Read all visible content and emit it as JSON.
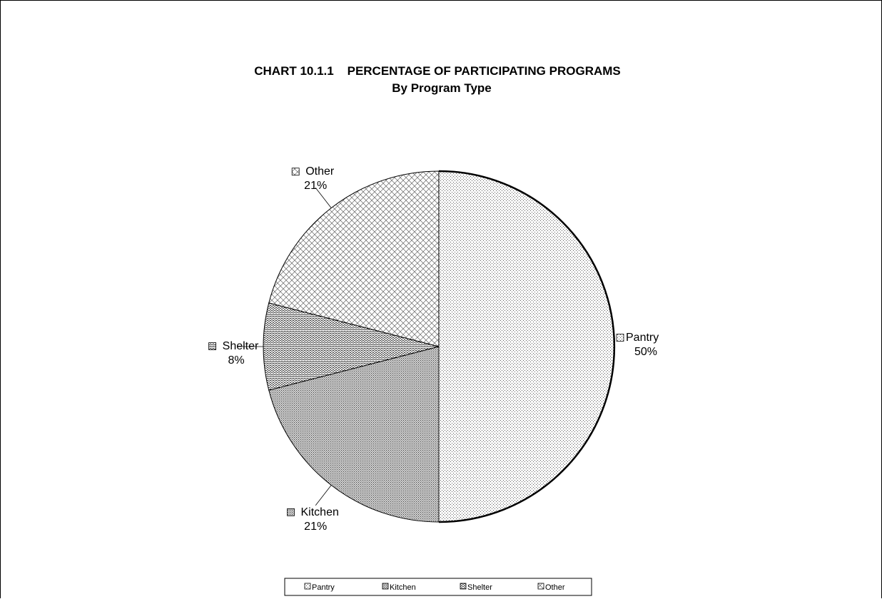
{
  "chart_data": {
    "type": "pie",
    "title": "CHART 10.1.1    PERCENTAGE OF PARTICIPATING PROGRAMS",
    "subtitle": "By Program Type",
    "categories": [
      "Pantry",
      "Kitchen",
      "Shelter",
      "Other"
    ],
    "values": [
      50,
      21,
      8,
      21
    ],
    "value_labels": [
      "50%",
      "21%",
      "8%",
      "21%"
    ],
    "legend": {
      "entries": [
        "Pantry",
        "Kitchen",
        "Shelter",
        "Other"
      ],
      "placement": "bottom"
    },
    "fills": {
      "Pantry": "dotted",
      "Kitchen": "dense-dotted",
      "Shelter": "zigzag",
      "Other": "crosshatch"
    }
  }
}
